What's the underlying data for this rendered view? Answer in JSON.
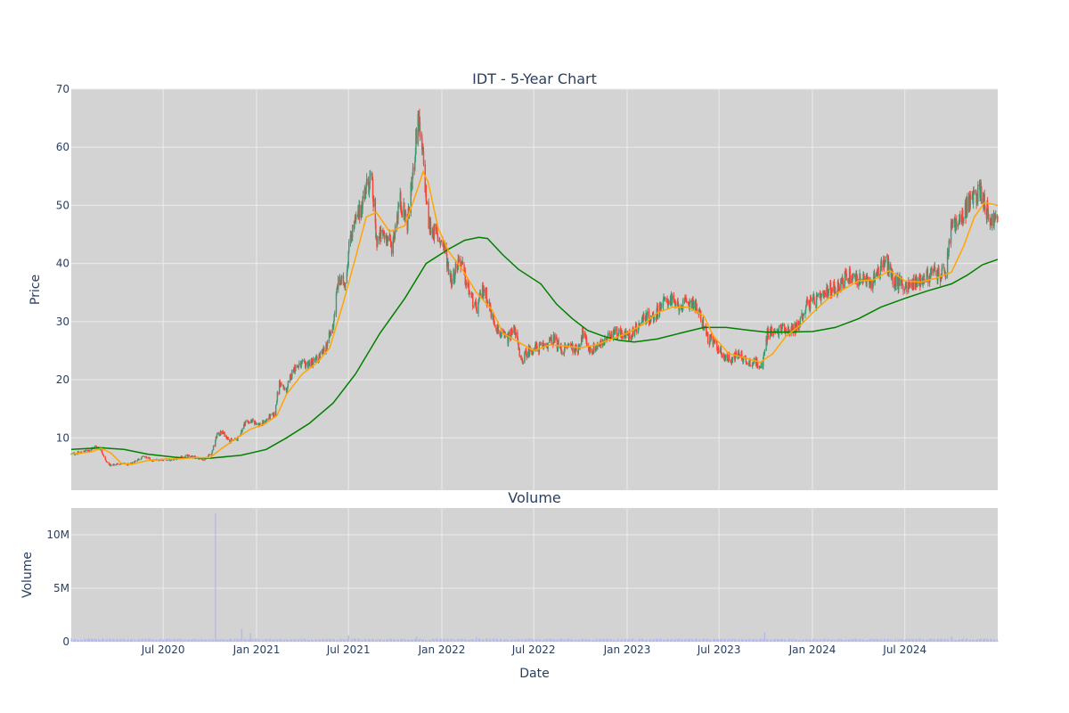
{
  "chart_data": {
    "type": "candlestick",
    "title": "IDT - 5-Year Chart",
    "subplot_title": "Volume",
    "xlabel": "Date",
    "price_ylabel": "Price",
    "volume_ylabel": "Volume",
    "x_range": [
      "2020-01-02",
      "2024-12-31"
    ],
    "price_ylim": [
      1,
      70
    ],
    "volume_ylim": [
      0,
      12500000
    ],
    "x_ticks": [
      {
        "date": "2020-07-01",
        "label": "Jul 2020"
      },
      {
        "date": "2021-01-01",
        "label": "Jan 2021"
      },
      {
        "date": "2021-07-01",
        "label": "Jul 2021"
      },
      {
        "date": "2022-01-01",
        "label": "Jan 2022"
      },
      {
        "date": "2022-07-01",
        "label": "Jul 2022"
      },
      {
        "date": "2023-01-01",
        "label": "Jan 2023"
      },
      {
        "date": "2023-07-01",
        "label": "Jul 2023"
      },
      {
        "date": "2024-01-01",
        "label": "Jan 2024"
      },
      {
        "date": "2024-07-01",
        "label": "Jul 2024"
      }
    ],
    "price_yticks": [
      {
        "value": 10,
        "label": "10"
      },
      {
        "value": 20,
        "label": "20"
      },
      {
        "value": 30,
        "label": "30"
      },
      {
        "value": 40,
        "label": "40"
      },
      {
        "value": 50,
        "label": "50"
      },
      {
        "value": 60,
        "label": "60"
      },
      {
        "value": 70,
        "label": "70"
      }
    ],
    "volume_yticks": [
      {
        "value": 0,
        "label": "0"
      },
      {
        "value": 5000000,
        "label": "5M"
      },
      {
        "value": 10000000,
        "label": "10M"
      }
    ],
    "grid": true,
    "legend": false,
    "colors": {
      "increasing": "#3d9970",
      "decreasing": "#ff4136",
      "ma_short": "#ffa500",
      "ma_long": "#008000",
      "volume": "#b5b9f0",
      "plot_bg": "#d3d3d3",
      "grid": "#ebebeb"
    },
    "close_series": [
      [
        "2020-01-02",
        7.2
      ],
      [
        "2020-01-20",
        7.5
      ],
      [
        "2020-02-05",
        7.8
      ],
      [
        "2020-02-20",
        8.6
      ],
      [
        "2020-03-01",
        8.0
      ],
      [
        "2020-03-10",
        6.0
      ],
      [
        "2020-03-20",
        5.2
      ],
      [
        "2020-04-05",
        5.6
      ],
      [
        "2020-04-25",
        5.4
      ],
      [
        "2020-05-10",
        6.2
      ],
      [
        "2020-05-25",
        6.8
      ],
      [
        "2020-06-10",
        6.1
      ],
      [
        "2020-06-25",
        6.3
      ],
      [
        "2020-07-15",
        6.2
      ],
      [
        "2020-08-01",
        6.5
      ],
      [
        "2020-08-15",
        6.9
      ],
      [
        "2020-09-01",
        6.7
      ],
      [
        "2020-09-20",
        6.3
      ],
      [
        "2020-10-05",
        7.5
      ],
      [
        "2020-10-15",
        10.5
      ],
      [
        "2020-10-25",
        11.0
      ],
      [
        "2020-11-10",
        9.5
      ],
      [
        "2020-11-25",
        9.8
      ],
      [
        "2020-12-10",
        12.8
      ],
      [
        "2020-12-25",
        12.8
      ],
      [
        "2021-01-10",
        12.2
      ],
      [
        "2021-01-25",
        13.5
      ],
      [
        "2021-02-05",
        14.0
      ],
      [
        "2021-02-15",
        19.5
      ],
      [
        "2021-02-28",
        18.0
      ],
      [
        "2021-03-15",
        22.0
      ],
      [
        "2021-03-31",
        22.5
      ],
      [
        "2021-04-15",
        22.8
      ],
      [
        "2021-04-30",
        23.5
      ],
      [
        "2021-05-15",
        25.0
      ],
      [
        "2021-05-31",
        29.0
      ],
      [
        "2021-06-10",
        36.5
      ],
      [
        "2021-06-25",
        37.0
      ],
      [
        "2021-07-05",
        45.0
      ],
      [
        "2021-07-20",
        48.0
      ],
      [
        "2021-08-01",
        52.0
      ],
      [
        "2021-08-15",
        55.0
      ],
      [
        "2021-08-25",
        44.0
      ],
      [
        "2021-09-10",
        45.0
      ],
      [
        "2021-09-25",
        43.0
      ],
      [
        "2021-10-10",
        51.0
      ],
      [
        "2021-10-25",
        47.0
      ],
      [
        "2021-11-05",
        55.0
      ],
      [
        "2021-11-15",
        65.0
      ],
      [
        "2021-11-25",
        58.0
      ],
      [
        "2021-12-05",
        47.0
      ],
      [
        "2021-12-20",
        45.0
      ],
      [
        "2022-01-05",
        43.0
      ],
      [
        "2022-01-20",
        37.0
      ],
      [
        "2022-02-05",
        41.0
      ],
      [
        "2022-02-20",
        36.0
      ],
      [
        "2022-03-10",
        32.0
      ],
      [
        "2022-03-25",
        36.0
      ],
      [
        "2022-04-10",
        31.0
      ],
      [
        "2022-04-25",
        28.0
      ],
      [
        "2022-05-10",
        27.0
      ],
      [
        "2022-05-25",
        29.0
      ],
      [
        "2022-06-05",
        23.0
      ],
      [
        "2022-06-20",
        25.0
      ],
      [
        "2022-07-10",
        25.5
      ],
      [
        "2022-07-25",
        26.0
      ],
      [
        "2022-08-10",
        27.0
      ],
      [
        "2022-08-25",
        25.0
      ],
      [
        "2022-09-10",
        26.0
      ],
      [
        "2022-09-25",
        25.0
      ],
      [
        "2022-10-05",
        28.0
      ],
      [
        "2022-10-20",
        25.0
      ],
      [
        "2022-11-05",
        26.0
      ],
      [
        "2022-11-20",
        26.5
      ],
      [
        "2022-12-05",
        28.5
      ],
      [
        "2022-12-20",
        28.0
      ],
      [
        "2023-01-05",
        27.5
      ],
      [
        "2023-01-20",
        29.0
      ],
      [
        "2023-02-05",
        31.0
      ],
      [
        "2023-02-20",
        30.5
      ],
      [
        "2023-03-10",
        33.0
      ],
      [
        "2023-03-25",
        34.0
      ],
      [
        "2023-04-10",
        32.5
      ],
      [
        "2023-04-25",
        33.0
      ],
      [
        "2023-05-10",
        33.5
      ],
      [
        "2023-05-25",
        31.0
      ],
      [
        "2023-06-10",
        27.0
      ],
      [
        "2023-06-25",
        26.0
      ],
      [
        "2023-07-10",
        24.0
      ],
      [
        "2023-07-25",
        23.5
      ],
      [
        "2023-08-10",
        24.5
      ],
      [
        "2023-08-25",
        23.0
      ],
      [
        "2023-09-10",
        23.0
      ],
      [
        "2023-09-25",
        22.5
      ],
      [
        "2023-10-05",
        28.5
      ],
      [
        "2023-10-20",
        28.0
      ],
      [
        "2023-11-05",
        29.0
      ],
      [
        "2023-11-20",
        28.5
      ],
      [
        "2023-12-05",
        29.5
      ],
      [
        "2023-12-20",
        33.0
      ],
      [
        "2024-01-05",
        33.5
      ],
      [
        "2024-01-20",
        34.0
      ],
      [
        "2024-02-05",
        35.5
      ],
      [
        "2024-02-20",
        36.0
      ],
      [
        "2024-03-10",
        38.0
      ],
      [
        "2024-03-25",
        37.5
      ],
      [
        "2024-04-10",
        37.0
      ],
      [
        "2024-04-25",
        36.5
      ],
      [
        "2024-05-10",
        39.0
      ],
      [
        "2024-05-25",
        40.5
      ],
      [
        "2024-06-10",
        37.0
      ],
      [
        "2024-06-25",
        36.5
      ],
      [
        "2024-07-10",
        36.0
      ],
      [
        "2024-07-25",
        37.0
      ],
      [
        "2024-08-10",
        37.5
      ],
      [
        "2024-08-25",
        38.5
      ],
      [
        "2024-09-10",
        38.0
      ],
      [
        "2024-09-20",
        38.5
      ],
      [
        "2024-10-01",
        47.0
      ],
      [
        "2024-10-15",
        46.5
      ],
      [
        "2024-11-01",
        50.0
      ],
      [
        "2024-11-15",
        51.5
      ],
      [
        "2024-11-25",
        53.0
      ],
      [
        "2024-12-05",
        50.5
      ],
      [
        "2024-12-15",
        47.5
      ],
      [
        "2024-12-31",
        47.5
      ]
    ],
    "ma_short_series": [
      [
        "2020-01-02",
        7.2
      ],
      [
        "2020-02-10",
        7.6
      ],
      [
        "2020-03-01",
        8.2
      ],
      [
        "2020-03-20",
        7.4
      ],
      [
        "2020-04-10",
        5.6
      ],
      [
        "2020-05-01",
        5.5
      ],
      [
        "2020-06-01",
        6.1
      ],
      [
        "2020-07-01",
        6.3
      ],
      [
        "2020-08-01",
        6.4
      ],
      [
        "2020-09-01",
        6.6
      ],
      [
        "2020-10-01",
        6.6
      ],
      [
        "2020-10-25",
        8.2
      ],
      [
        "2020-11-20",
        9.8
      ],
      [
        "2020-12-20",
        11.5
      ],
      [
        "2021-01-15",
        12.3
      ],
      [
        "2021-02-10",
        13.8
      ],
      [
        "2021-03-01",
        17.5
      ],
      [
        "2021-04-01",
        21.0
      ],
      [
        "2021-05-01",
        23.0
      ],
      [
        "2021-05-25",
        25.5
      ],
      [
        "2021-06-20",
        33.0
      ],
      [
        "2021-07-15",
        41.0
      ],
      [
        "2021-08-05",
        48.0
      ],
      [
        "2021-08-25",
        48.8
      ],
      [
        "2021-09-20",
        45.5
      ],
      [
        "2021-10-20",
        46.5
      ],
      [
        "2021-11-15",
        53.0
      ],
      [
        "2021-11-25",
        55.8
      ],
      [
        "2021-12-05",
        54.0
      ],
      [
        "2021-12-25",
        46.0
      ],
      [
        "2022-01-15",
        42.0
      ],
      [
        "2022-02-10",
        39.0
      ],
      [
        "2022-03-10",
        35.0
      ],
      [
        "2022-04-10",
        32.0
      ],
      [
        "2022-05-01",
        28.0
      ],
      [
        "2022-06-01",
        26.5
      ],
      [
        "2022-07-01",
        25.0
      ],
      [
        "2022-08-01",
        26.0
      ],
      [
        "2022-09-01",
        25.8
      ],
      [
        "2022-10-01",
        25.5
      ],
      [
        "2022-11-01",
        26.0
      ],
      [
        "2022-12-01",
        27.0
      ],
      [
        "2023-01-01",
        28.0
      ],
      [
        "2023-02-01",
        29.5
      ],
      [
        "2023-03-01",
        31.5
      ],
      [
        "2023-04-01",
        32.5
      ],
      [
        "2023-05-01",
        32.5
      ],
      [
        "2023-06-01",
        31.0
      ],
      [
        "2023-06-20",
        27.5
      ],
      [
        "2023-07-20",
        24.5
      ],
      [
        "2023-08-20",
        23.8
      ],
      [
        "2023-09-20",
        23.0
      ],
      [
        "2023-10-15",
        24.5
      ],
      [
        "2023-11-10",
        27.5
      ],
      [
        "2023-12-10",
        29.5
      ],
      [
        "2024-01-01",
        31.5
      ],
      [
        "2024-02-01",
        34.0
      ],
      [
        "2024-03-01",
        35.5
      ],
      [
        "2024-04-01",
        37.0
      ],
      [
        "2024-05-01",
        37.2
      ],
      [
        "2024-06-01",
        38.8
      ],
      [
        "2024-07-01",
        37.0
      ],
      [
        "2024-08-01",
        36.8
      ],
      [
        "2024-09-01",
        37.5
      ],
      [
        "2024-10-01",
        38.5
      ],
      [
        "2024-10-25",
        43.0
      ],
      [
        "2024-11-15",
        48.0
      ],
      [
        "2024-12-05",
        50.5
      ],
      [
        "2024-12-31",
        50.0
      ]
    ],
    "ma_long_series": [
      [
        "2020-01-02",
        8.0
      ],
      [
        "2020-03-01",
        8.3
      ],
      [
        "2020-04-15",
        8.0
      ],
      [
        "2020-06-01",
        7.2
      ],
      [
        "2020-08-01",
        6.6
      ],
      [
        "2020-10-01",
        6.5
      ],
      [
        "2020-12-01",
        7.0
      ],
      [
        "2021-01-20",
        8.0
      ],
      [
        "2021-03-01",
        10.0
      ],
      [
        "2021-04-15",
        12.5
      ],
      [
        "2021-06-01",
        16.0
      ],
      [
        "2021-07-15",
        21.0
      ],
      [
        "2021-09-01",
        28.0
      ],
      [
        "2021-10-20",
        34.0
      ],
      [
        "2021-12-01",
        40.0
      ],
      [
        "2022-01-15",
        42.5
      ],
      [
        "2022-02-15",
        44.0
      ],
      [
        "2022-03-15",
        44.5
      ],
      [
        "2022-04-01",
        44.3
      ],
      [
        "2022-05-01",
        41.5
      ],
      [
        "2022-06-01",
        39.0
      ],
      [
        "2022-07-15",
        36.5
      ],
      [
        "2022-08-15",
        33.0
      ],
      [
        "2022-09-15",
        30.5
      ],
      [
        "2022-10-15",
        28.5
      ],
      [
        "2022-11-15",
        27.5
      ],
      [
        "2022-12-15",
        26.8
      ],
      [
        "2023-01-15",
        26.5
      ],
      [
        "2023-03-01",
        27.0
      ],
      [
        "2023-04-15",
        28.0
      ],
      [
        "2023-06-01",
        29.0
      ],
      [
        "2023-07-15",
        29.0
      ],
      [
        "2023-09-01",
        28.5
      ],
      [
        "2023-10-01",
        28.2
      ],
      [
        "2023-11-15",
        28.2
      ],
      [
        "2024-01-01",
        28.3
      ],
      [
        "2024-02-15",
        29.0
      ],
      [
        "2024-04-01",
        30.5
      ],
      [
        "2024-05-15",
        32.5
      ],
      [
        "2024-07-01",
        34.0
      ],
      [
        "2024-08-15",
        35.3
      ],
      [
        "2024-10-01",
        36.5
      ],
      [
        "2024-11-01",
        38.0
      ],
      [
        "2024-12-01",
        39.8
      ],
      [
        "2024-12-31",
        40.7
      ]
    ],
    "volume_spikes": [
      [
        "2020-10-12",
        12000000
      ],
      [
        "2020-12-03",
        1200000
      ],
      [
        "2020-12-20",
        800000
      ],
      [
        "2021-07-01",
        600000
      ],
      [
        "2021-11-12",
        500000
      ],
      [
        "2022-03-10",
        450000
      ],
      [
        "2023-09-29",
        900000
      ],
      [
        "2024-10-01",
        500000
      ]
    ],
    "volume_base": 200000
  }
}
